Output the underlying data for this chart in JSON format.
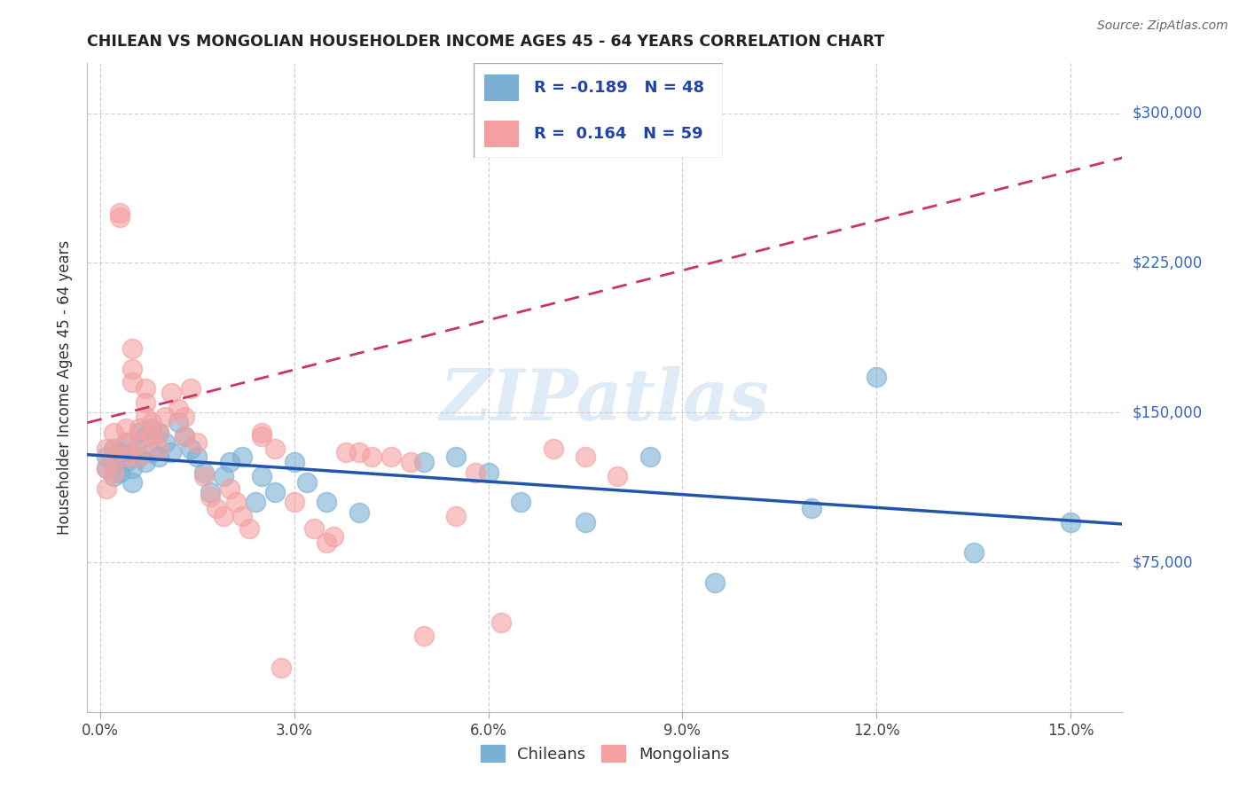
{
  "title": "CHILEAN VS MONGOLIAN HOUSEHOLDER INCOME AGES 45 - 64 YEARS CORRELATION CHART",
  "source": "Source: ZipAtlas.com",
  "ylabel": "Householder Income Ages 45 - 64 years",
  "xlabel_ticks": [
    "0.0%",
    "3.0%",
    "6.0%",
    "9.0%",
    "12.0%",
    "15.0%"
  ],
  "xlabel_vals": [
    0.0,
    0.03,
    0.06,
    0.09,
    0.12,
    0.15
  ],
  "ylim": [
    0,
    325000
  ],
  "xlim": [
    -0.002,
    0.158
  ],
  "ytick_labels": [
    "$75,000",
    "$150,000",
    "$225,000",
    "$300,000"
  ],
  "ytick_vals": [
    75000,
    150000,
    225000,
    300000
  ],
  "legend_chileans": "Chileans",
  "legend_mongolians": "Mongolians",
  "R_chileans": -0.189,
  "N_chileans": 48,
  "R_mongolians": 0.164,
  "N_mongolians": 59,
  "chilean_color": "#7BAFD4",
  "mongolian_color": "#F4A0A0",
  "chilean_line_color": "#2255AA",
  "mongolian_line_color": "#CC3366",
  "background_color": "#FFFFFF",
  "watermark_text": "ZIPatlas",
  "chileans_x": [
    0.001,
    0.001,
    0.002,
    0.002,
    0.003,
    0.003,
    0.004,
    0.004,
    0.005,
    0.005,
    0.005,
    0.006,
    0.006,
    0.007,
    0.007,
    0.008,
    0.008,
    0.009,
    0.009,
    0.01,
    0.011,
    0.012,
    0.013,
    0.014,
    0.015,
    0.016,
    0.017,
    0.019,
    0.02,
    0.022,
    0.024,
    0.025,
    0.027,
    0.03,
    0.032,
    0.035,
    0.04,
    0.05,
    0.055,
    0.06,
    0.065,
    0.075,
    0.085,
    0.095,
    0.11,
    0.12,
    0.135,
    0.15
  ],
  "chileans_y": [
    128000,
    122000,
    132000,
    118000,
    130000,
    120000,
    135000,
    125000,
    130000,
    122000,
    115000,
    140000,
    128000,
    138000,
    125000,
    142000,
    130000,
    140000,
    128000,
    135000,
    130000,
    145000,
    138000,
    132000,
    128000,
    120000,
    110000,
    118000,
    125000,
    128000,
    105000,
    118000,
    110000,
    125000,
    115000,
    105000,
    100000,
    125000,
    128000,
    120000,
    105000,
    95000,
    128000,
    65000,
    102000,
    168000,
    80000,
    95000
  ],
  "mongolians_x": [
    0.001,
    0.001,
    0.001,
    0.002,
    0.002,
    0.002,
    0.003,
    0.003,
    0.004,
    0.004,
    0.004,
    0.005,
    0.005,
    0.005,
    0.006,
    0.006,
    0.006,
    0.007,
    0.007,
    0.007,
    0.008,
    0.008,
    0.009,
    0.009,
    0.01,
    0.011,
    0.012,
    0.013,
    0.013,
    0.014,
    0.015,
    0.016,
    0.017,
    0.018,
    0.019,
    0.02,
    0.021,
    0.022,
    0.023,
    0.025,
    0.027,
    0.03,
    0.033,
    0.036,
    0.04,
    0.045,
    0.05,
    0.055,
    0.062,
    0.035,
    0.038,
    0.042,
    0.048,
    0.058,
    0.07,
    0.075,
    0.08,
    0.025,
    0.028
  ],
  "mongolians_y": [
    132000,
    122000,
    112000,
    140000,
    130000,
    120000,
    248000,
    250000,
    142000,
    135000,
    128000,
    182000,
    172000,
    165000,
    142000,
    135000,
    128000,
    162000,
    155000,
    148000,
    145000,
    138000,
    140000,
    132000,
    148000,
    160000,
    152000,
    148000,
    138000,
    162000,
    135000,
    118000,
    108000,
    102000,
    98000,
    112000,
    105000,
    98000,
    92000,
    138000,
    132000,
    105000,
    92000,
    88000,
    130000,
    128000,
    38000,
    98000,
    45000,
    85000,
    130000,
    128000,
    125000,
    120000,
    132000,
    128000,
    118000,
    140000,
    22000
  ]
}
